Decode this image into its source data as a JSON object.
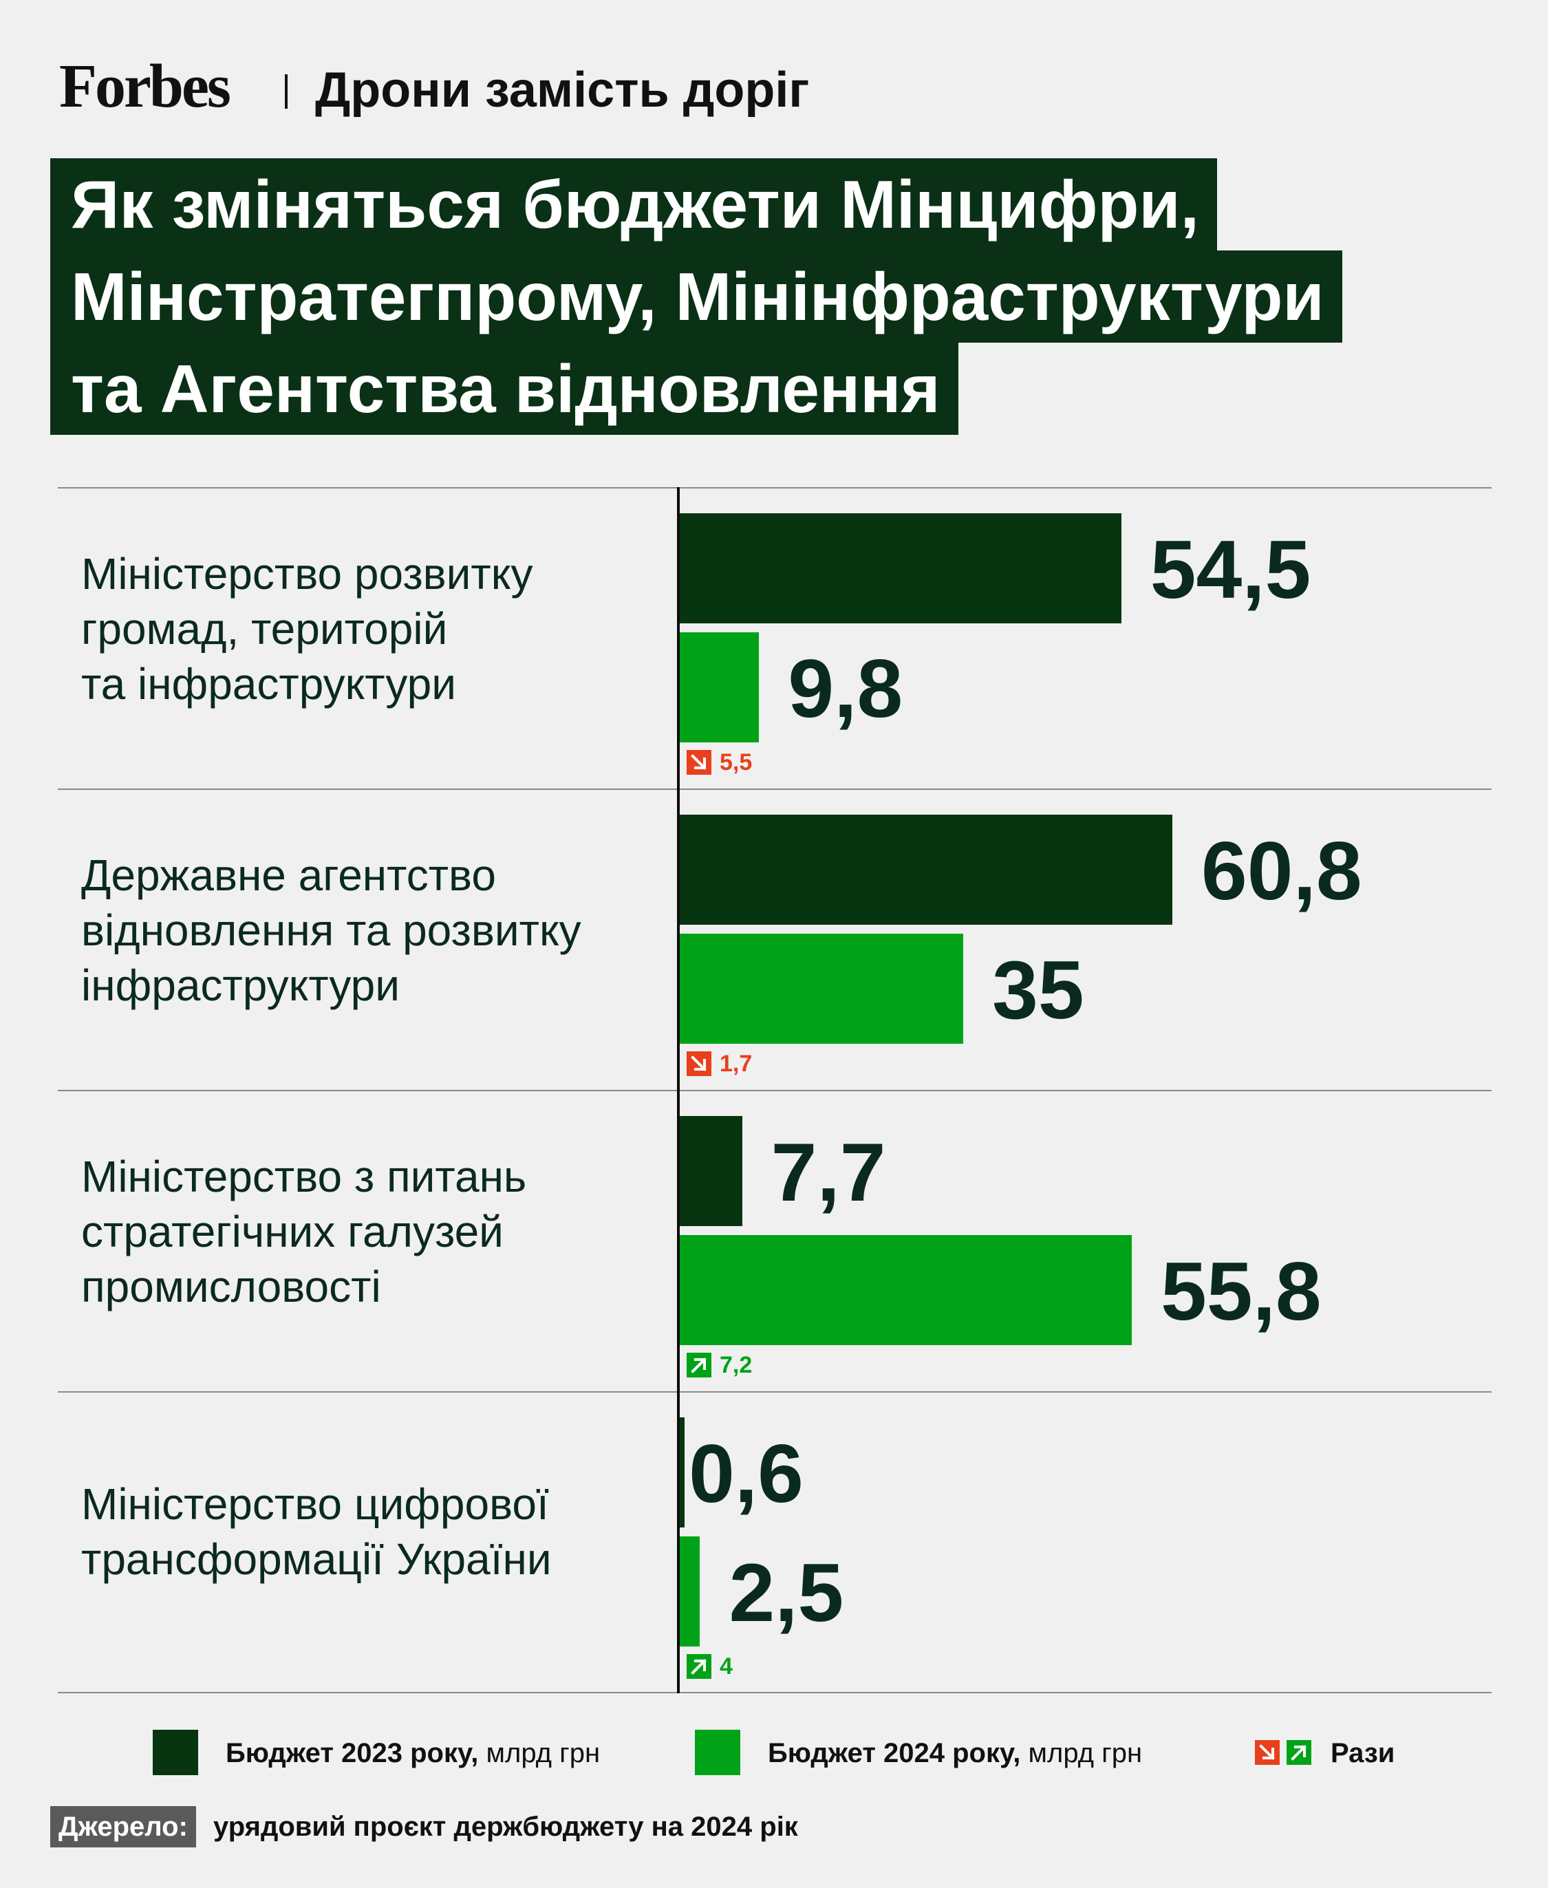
{
  "header": {
    "brand": "Forbes",
    "subtitle": "Дрони замість доріг",
    "title_lines": [
      "Як зміняться бюджети Мінцифри,",
      "Мінстратегпрому, Мінінфраструктури",
      "та Агентства відновлення"
    ]
  },
  "chart_data": {
    "type": "bar",
    "orientation": "horizontal",
    "unit": "млрд грн",
    "categories": [
      [
        "Міністерство розвитку",
        "громад, територій",
        "та інфраструктури"
      ],
      [
        "Державне агентство",
        "відновлення та розвитку",
        "інфраструктури"
      ],
      [
        "Міністерство з питань",
        "стратегічних галузей",
        "промисловості"
      ],
      [
        "Міністерство цифрової",
        "трансформації України"
      ]
    ],
    "series": [
      {
        "name": "Бюджет 2023 року",
        "color": "#07350f",
        "values": [
          54.5,
          60.8,
          7.7,
          0.6
        ],
        "labels": [
          "54,5",
          "60,8",
          "7,7",
          "0,6"
        ]
      },
      {
        "name": "Бюджет 2024 року",
        "color": "#00a317",
        "values": [
          9.8,
          35,
          55.8,
          2.5
        ],
        "labels": [
          "9,8",
          "35",
          "55,8",
          "2,5"
        ]
      }
    ],
    "ratios": [
      {
        "direction": "down",
        "value": "5,5",
        "color": "#e8401c"
      },
      {
        "direction": "down",
        "value": "1,7",
        "color": "#e8401c"
      },
      {
        "direction": "up",
        "value": "7,2",
        "color": "#00a317"
      },
      {
        "direction": "up",
        "value": "4",
        "color": "#00a317"
      }
    ],
    "xlim": [
      0,
      60.8
    ],
    "grid": false
  },
  "legend": {
    "item_2023_bold": "Бюджет 2023 року,",
    "item_2023_unit": "млрд грн",
    "item_2024_bold": "Бюджет 2024 року,",
    "item_2024_unit": "млрд грн",
    "ratio_label": "Рази"
  },
  "source": {
    "label": "Джерело:",
    "text": "урядовий проєкт держбюджету на 2024 рік"
  },
  "colors": {
    "dark_green": "#07350f",
    "green": "#00a317",
    "red": "#e8401c",
    "background": "#f0f0f0"
  }
}
